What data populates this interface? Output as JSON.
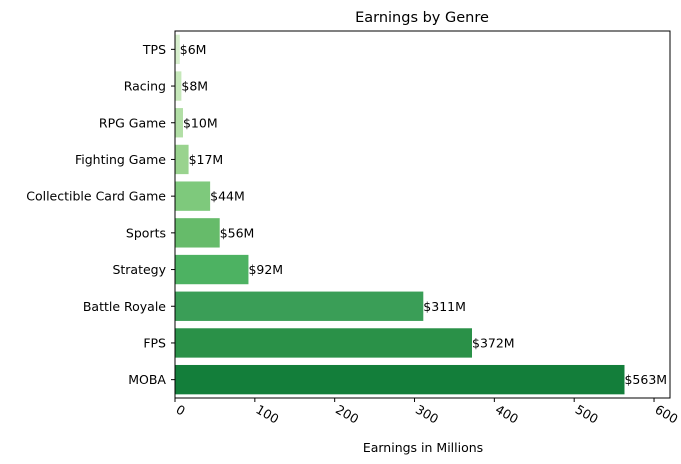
{
  "chart_data": {
    "type": "bar",
    "orientation": "horizontal",
    "title": "Earnings by Genre",
    "xlabel": "Earnings in Millions",
    "ylabel": "",
    "xlim": [
      0,
      620
    ],
    "x_ticks": [
      0,
      100,
      200,
      300,
      400,
      500,
      600
    ],
    "grid": false,
    "categories": [
      "MOBA",
      "FPS",
      "Battle Royale",
      "Strategy",
      "Sports",
      "Collectible Card Game",
      "Fighting Game",
      "RPG Game",
      "Racing",
      "TPS"
    ],
    "values": [
      563,
      372,
      311,
      92,
      56,
      44,
      17,
      10,
      8,
      6
    ],
    "data_labels": [
      "$563M",
      "$372M",
      "$311M",
      "$92M",
      "$56M",
      "$44M",
      "$17M",
      "$10M",
      "$8M",
      "$6M"
    ],
    "colors": [
      "#137e3a",
      "#2a9148",
      "#3a9e57",
      "#4db262",
      "#66bb6a",
      "#7ec97c",
      "#99d38e",
      "#b2dfa6",
      "#c6e8ba",
      "#d7efcd"
    ]
  }
}
